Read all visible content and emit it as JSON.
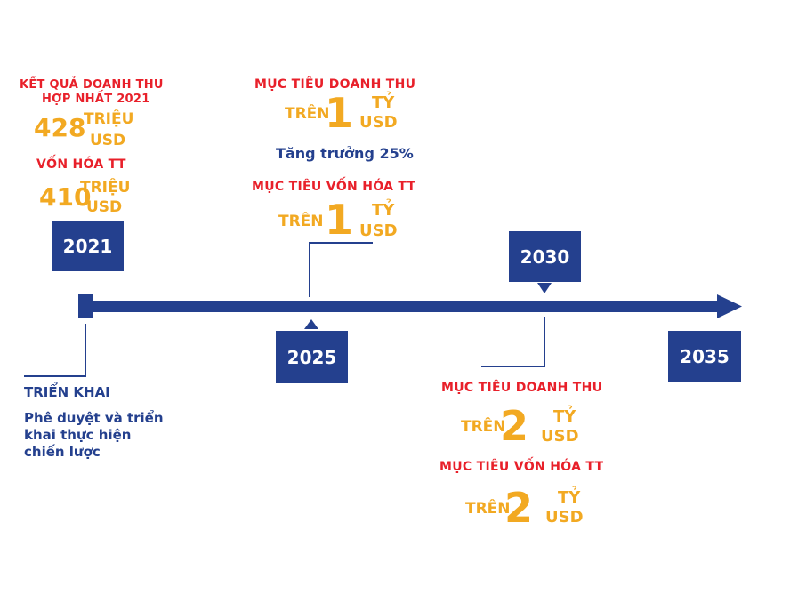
{
  "colors": {
    "navy": "#24408e",
    "red": "#e8202a",
    "orange": "#f2a922"
  },
  "y2021": {
    "year": "2021",
    "rev_title_line1": "KẾT QUẢ DOANH THU",
    "rev_title_line2": "HỢP NHẤT 2021",
    "rev_value": "428",
    "rev_unit_line1": "TRIỆU",
    "rev_unit_line2": "USD",
    "cap_title": "VỐN HÓA TT",
    "cap_value": "410",
    "cap_unit_line1": "TRIỆU",
    "cap_unit_line2": "USD",
    "deploy_title": "TRIỂN KHAI",
    "deploy_desc_line1": "Phê duyệt và triển",
    "deploy_desc_line2": "khai thực hiện",
    "deploy_desc_line3": "chiến lược"
  },
  "y2025": {
    "year": "2025",
    "rev_title": "MỤC TIÊU DOANH THU",
    "rev_prefix": "TRÊN",
    "rev_value": "1",
    "rev_unit_line1": "TỶ",
    "rev_unit_line2": "USD",
    "growth": "Tăng trưởng 25%",
    "cap_title": "MỤC TIÊU VỐN HÓA TT",
    "cap_prefix": "TRÊN",
    "cap_value": "1",
    "cap_unit_line1": "TỶ",
    "cap_unit_line2": "USD"
  },
  "y2030": {
    "year": "2030",
    "rev_title": "MỤC TIÊU DOANH THU",
    "rev_prefix": "TRÊN",
    "rev_value": "2",
    "rev_unit_line1": "TỶ",
    "rev_unit_line2": "USD",
    "cap_title": "MỤC TIÊU VỐN HÓA TT",
    "cap_prefix": "TRÊN",
    "cap_value": "2",
    "cap_unit_line1": "TỶ",
    "cap_unit_line2": "USD"
  },
  "y2035": {
    "year": "2035"
  }
}
